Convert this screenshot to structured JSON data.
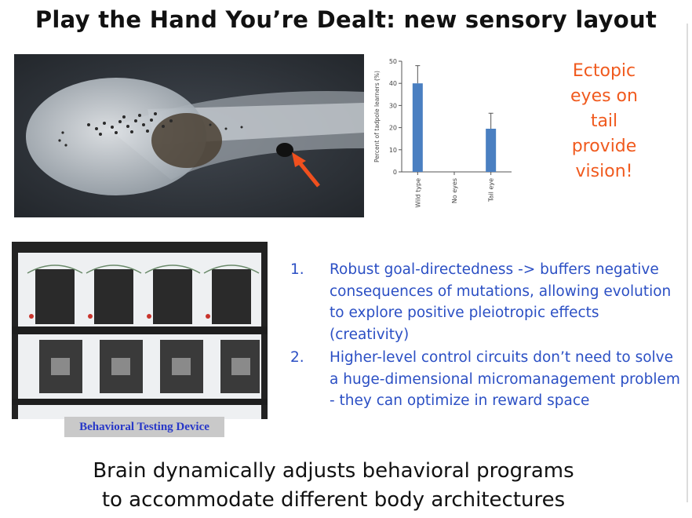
{
  "slide": {
    "title": "Play the Hand You’re Dealt: new sensory layout",
    "ectopic_lines": [
      "Ectopic",
      "eyes on",
      "tail",
      "provide",
      "vision!"
    ],
    "rig_caption": "Behavioral Testing Device",
    "points": [
      {
        "num": "1.",
        "text": "Robust goal-directedness -> buffers negative consequences of mutations, allowing evolution to explore positive pleiotropic effects (creativity)"
      },
      {
        "num": "2.",
        "text": "Higher-level control circuits don’t need to solve a huge-dimensional micromanagement problem - they can optimize in reward space"
      }
    ],
    "footer_lines": [
      "Brain dynamically adjusts behavioral programs",
      "to accommodate different body architectures"
    ]
  },
  "chart_data": {
    "type": "bar",
    "categories": [
      "Wild type",
      "No eyes",
      "Tail eye"
    ],
    "values": [
      40,
      0,
      19.5
    ],
    "errors": [
      8,
      0,
      7
    ],
    "ylabel": "Percent of tadpole learners (%)",
    "ylim": [
      0,
      50
    ],
    "yticks": [
      0,
      10,
      20,
      30,
      40,
      50
    ],
    "bar_color": "#4a7fc1"
  },
  "colors": {
    "accent_orange": "#f05a1e",
    "text_blue": "#2b4fc4"
  }
}
